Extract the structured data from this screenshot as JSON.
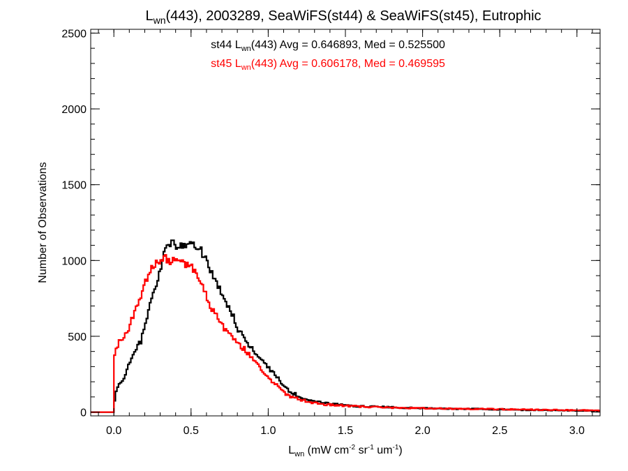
{
  "chart_data": {
    "type": "line",
    "title": {
      "prefix": "L",
      "prefix_sub": "wn",
      "rest": "(443), 2003289, SeaWiFS(st44) & SeaWiFS(st45), Eutrophic"
    },
    "xlabel": {
      "base": "L",
      "sub": "wn",
      "units_parts": [
        {
          "t": " (mW cm",
          "s": ""
        },
        {
          "t": "-2",
          "s": "sup"
        },
        {
          "t": " sr",
          "s": ""
        },
        {
          "t": "-1",
          "s": "sup"
        },
        {
          "t": " um",
          "s": ""
        },
        {
          "t": "-1",
          "s": "sup"
        },
        {
          "t": ")",
          "s": ""
        }
      ]
    },
    "ylabel": "Number of Observations",
    "xlim": [
      -0.15,
      3.15
    ],
    "ylim": [
      -25,
      2525
    ],
    "x_ticks": [
      0.0,
      0.5,
      1.0,
      1.5,
      2.0,
      2.5,
      3.0
    ],
    "x_tick_labels": [
      "0.0",
      "0.5",
      "1.0",
      "1.5",
      "2.0",
      "2.5",
      "3.0"
    ],
    "y_ticks": [
      0,
      500,
      1000,
      1500,
      2000,
      2500
    ],
    "y_tick_labels": [
      "0",
      "500",
      "1000",
      "1500",
      "2000",
      "2500"
    ],
    "grid": false,
    "bin_width": 0.01,
    "annotations": [
      {
        "series": "st44",
        "prefix": "st44 L",
        "sub": "wn",
        "rest": "(443) Avg = 0.646893, Med = 0.525500",
        "color": "#000000"
      },
      {
        "series": "st45",
        "prefix": "st45 L",
        "sub": "wn",
        "rest": "(443) Avg = 0.606178, Med = 0.469595",
        "color": "#ff0000"
      }
    ],
    "series": [
      {
        "name": "st44",
        "color": "#000000",
        "style": "step",
        "points": [
          [
            -0.15,
            0
          ],
          [
            0.0,
            0
          ],
          [
            0.0,
            60
          ],
          [
            0.02,
            150
          ],
          [
            0.05,
            200
          ],
          [
            0.08,
            260
          ],
          [
            0.1,
            320
          ],
          [
            0.12,
            380
          ],
          [
            0.15,
            420
          ],
          [
            0.18,
            480
          ],
          [
            0.2,
            560
          ],
          [
            0.22,
            650
          ],
          [
            0.25,
            760
          ],
          [
            0.28,
            850
          ],
          [
            0.3,
            940
          ],
          [
            0.32,
            1030
          ],
          [
            0.35,
            1090
          ],
          [
            0.38,
            1110
          ],
          [
            0.4,
            1100
          ],
          [
            0.42,
            1090
          ],
          [
            0.45,
            1100
          ],
          [
            0.48,
            1095
          ],
          [
            0.5,
            1110
          ],
          [
            0.52,
            1090
          ],
          [
            0.55,
            1080
          ],
          [
            0.58,
            1040
          ],
          [
            0.6,
            1000
          ],
          [
            0.62,
            960
          ],
          [
            0.65,
            880
          ],
          [
            0.68,
            820
          ],
          [
            0.7,
            760
          ],
          [
            0.72,
            720
          ],
          [
            0.75,
            680
          ],
          [
            0.78,
            620
          ],
          [
            0.8,
            560
          ],
          [
            0.82,
            520
          ],
          [
            0.85,
            480
          ],
          [
            0.88,
            440
          ],
          [
            0.9,
            420
          ],
          [
            0.92,
            380
          ],
          [
            0.95,
            350
          ],
          [
            0.98,
            320
          ],
          [
            1.0,
            290
          ],
          [
            1.02,
            270
          ],
          [
            1.05,
            240
          ],
          [
            1.08,
            200
          ],
          [
            1.1,
            175
          ],
          [
            1.12,
            150
          ],
          [
            1.15,
            130
          ],
          [
            1.2,
            105
          ],
          [
            1.25,
            85
          ],
          [
            1.3,
            72
          ],
          [
            1.35,
            62
          ],
          [
            1.4,
            55
          ],
          [
            1.5,
            45
          ],
          [
            1.6,
            38
          ],
          [
            1.7,
            35
          ],
          [
            1.8,
            32
          ],
          [
            1.9,
            28
          ],
          [
            2.0,
            25
          ],
          [
            2.2,
            22
          ],
          [
            2.4,
            20
          ],
          [
            2.6,
            15
          ],
          [
            2.8,
            12
          ],
          [
            3.0,
            10
          ],
          [
            3.15,
            8
          ]
        ]
      },
      {
        "name": "st45",
        "color": "#ff0000",
        "style": "step",
        "points": [
          [
            -0.15,
            0
          ],
          [
            0.0,
            0
          ],
          [
            0.0,
            370
          ],
          [
            0.02,
            440
          ],
          [
            0.05,
            480
          ],
          [
            0.08,
            520
          ],
          [
            0.1,
            560
          ],
          [
            0.12,
            620
          ],
          [
            0.15,
            690
          ],
          [
            0.18,
            770
          ],
          [
            0.2,
            840
          ],
          [
            0.22,
            900
          ],
          [
            0.25,
            950
          ],
          [
            0.28,
            990
          ],
          [
            0.3,
            1010
          ],
          [
            0.32,
            1020
          ],
          [
            0.35,
            1000
          ],
          [
            0.38,
            990
          ],
          [
            0.4,
            1000
          ],
          [
            0.42,
            980
          ],
          [
            0.45,
            990
          ],
          [
            0.48,
            975
          ],
          [
            0.5,
            960
          ],
          [
            0.52,
            940
          ],
          [
            0.55,
            880
          ],
          [
            0.58,
            820
          ],
          [
            0.6,
            760
          ],
          [
            0.62,
            710
          ],
          [
            0.65,
            660
          ],
          [
            0.68,
            610
          ],
          [
            0.7,
            580
          ],
          [
            0.72,
            550
          ],
          [
            0.75,
            520
          ],
          [
            0.78,
            490
          ],
          [
            0.8,
            470
          ],
          [
            0.82,
            440
          ],
          [
            0.85,
            410
          ],
          [
            0.88,
            380
          ],
          [
            0.9,
            350
          ],
          [
            0.92,
            320
          ],
          [
            0.95,
            290
          ],
          [
            0.98,
            260
          ],
          [
            1.0,
            230
          ],
          [
            1.02,
            205
          ],
          [
            1.05,
            180
          ],
          [
            1.08,
            155
          ],
          [
            1.1,
            130
          ],
          [
            1.12,
            115
          ],
          [
            1.15,
            100
          ],
          [
            1.2,
            85
          ],
          [
            1.25,
            70
          ],
          [
            1.3,
            60
          ],
          [
            1.35,
            52
          ],
          [
            1.4,
            48
          ],
          [
            1.5,
            42
          ],
          [
            1.6,
            36
          ],
          [
            1.7,
            33
          ],
          [
            1.8,
            30
          ],
          [
            1.9,
            28
          ],
          [
            2.0,
            25
          ],
          [
            2.2,
            22
          ],
          [
            2.4,
            20
          ],
          [
            2.6,
            18
          ],
          [
            2.8,
            15
          ],
          [
            3.0,
            12
          ],
          [
            3.15,
            10
          ]
        ]
      }
    ]
  }
}
